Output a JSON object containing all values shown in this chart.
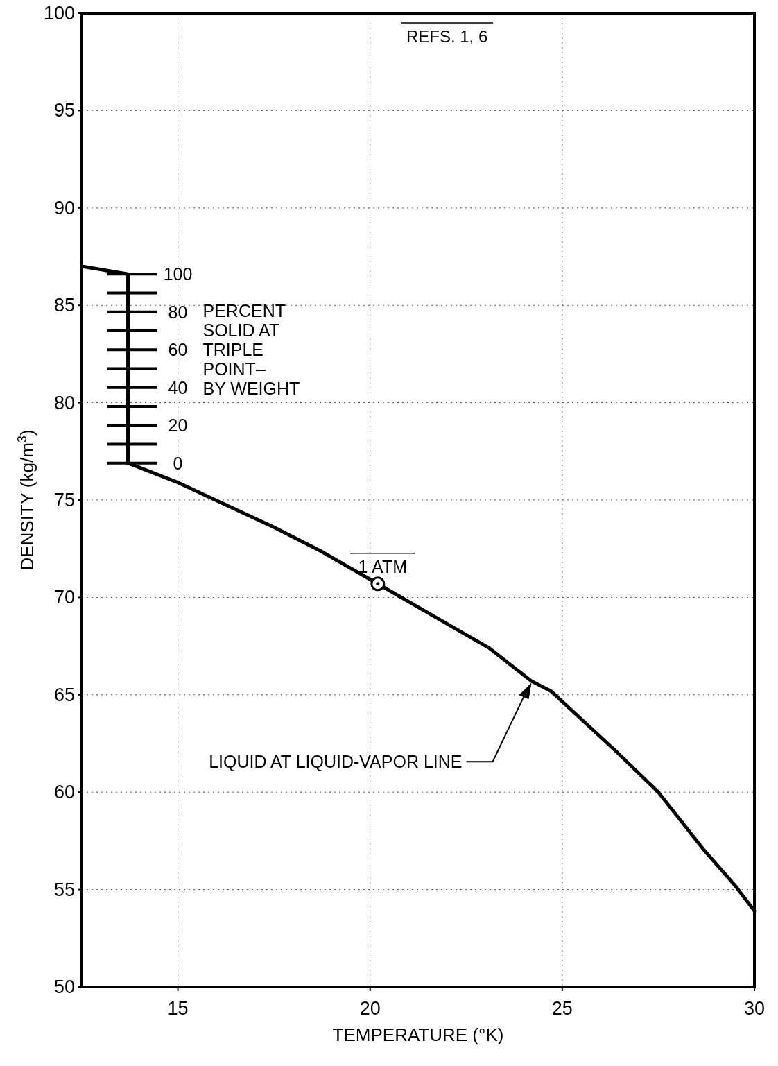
{
  "chart_data": {
    "type": "line",
    "xlabel": "TEMPERATURE (°K)",
    "ylabel": "DENSITY (kg/m$^{3}$)",
    "xlim": [
      12.5,
      30
    ],
    "xticks": [
      15,
      20,
      25,
      30
    ],
    "ylim": [
      50,
      100
    ],
    "yticks": [
      50,
      55,
      60,
      65,
      70,
      75,
      80,
      85,
      90,
      95,
      100
    ],
    "grid": true,
    "series": [
      {
        "color": "#000000",
        "x": [
          12.5,
          13.7,
          13.7,
          15,
          17.5,
          18.7,
          20.2,
          21.6,
          23.1,
          24.2,
          24.7,
          26.4,
          27.5,
          28.7,
          29.5,
          30
        ],
        "values": [
          87.0,
          86.6,
          76.9,
          75.9,
          73.6,
          72.4,
          70.7,
          69.1,
          67.4,
          65.7,
          65.2,
          62.1,
          60.0,
          57.0,
          55.2,
          53.9
        ]
      },
      {
        "type": "scatter",
        "marker": "circle",
        "color": "#000000",
        "x": [
          20.2
        ],
        "values": [
          70.7
        ]
      }
    ],
    "annotations": [
      "REFS. 1, 6",
      "PERCENT\nSOLID AT\nTRIPLE\nPOINT–\nBY WEIGHT",
      {
        "text": "1 ATM",
        "x": 20.2,
        "y": 70.7
      },
      "LIQUID AT LIQUID-VAPOR LINE",
      "0",
      "20",
      "40",
      "60",
      "80",
      "100"
    ]
  }
}
